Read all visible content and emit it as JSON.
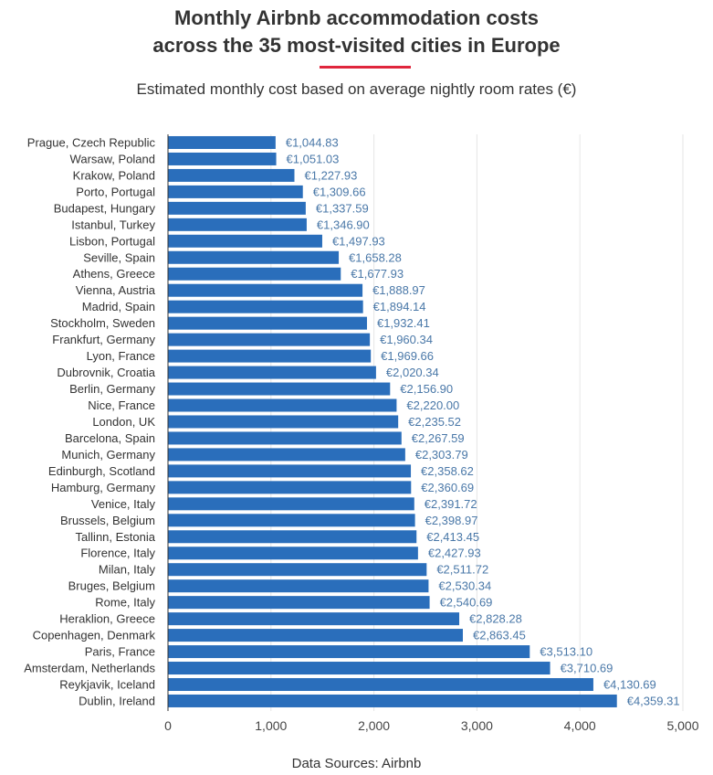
{
  "chart_data": {
    "type": "bar",
    "orientation": "horizontal",
    "title": "Monthly Airbnb accommodation costs across the 35 most-visited cities in Europe",
    "title_lines": [
      "Monthly Airbnb accommodation costs",
      "across the 35 most-visited cities in Europe"
    ],
    "subtitle": "Estimated monthly cost based on average nightly room rates (€)",
    "source": "Data Sources: Airbnb",
    "xlabel": "",
    "ylabel": "",
    "xlim": [
      0,
      5000
    ],
    "xticks": [
      0,
      1000,
      2000,
      3000,
      4000,
      5000
    ],
    "xtick_labels": [
      "0",
      "1,000",
      "2,000",
      "3,000",
      "4,000",
      "5,000"
    ],
    "grid": true,
    "bar_color": "#2a6ebb",
    "label_color": "#4a78a8",
    "accent_color": "#e0263c",
    "categories": [
      "Prague, Czech Republic",
      "Warsaw, Poland",
      "Krakow, Poland",
      "Porto, Portugal",
      "Budapest, Hungary",
      "Istanbul, Turkey",
      "Lisbon, Portugal",
      "Seville, Spain",
      "Athens, Greece",
      "Vienna, Austria",
      "Madrid, Spain",
      "Stockholm, Sweden",
      "Frankfurt, Germany",
      "Lyon, France",
      "Dubrovnik, Croatia",
      "Berlin, Germany",
      "Nice, France",
      "London, UK",
      "Barcelona, Spain",
      "Munich, Germany",
      "Edinburgh, Scotland",
      "Hamburg, Germany",
      "Venice, Italy",
      "Brussels, Belgium",
      "Tallinn, Estonia",
      "Florence, Italy",
      "Milan, Italy",
      "Bruges, Belgium",
      "Rome, Italy",
      "Heraklion, Greece",
      "Copenhagen, Denmark",
      "Paris, France",
      "Amsterdam, Netherlands",
      "Reykjavik, Iceland",
      "Dublin, Ireland"
    ],
    "values": [
      1044.83,
      1051.03,
      1227.93,
      1309.66,
      1337.59,
      1346.9,
      1497.93,
      1658.28,
      1677.93,
      1888.97,
      1894.14,
      1932.41,
      1960.34,
      1969.66,
      2020.34,
      2156.9,
      2220.0,
      2235.52,
      2267.59,
      2303.79,
      2358.62,
      2360.69,
      2391.72,
      2398.97,
      2413.45,
      2427.93,
      2511.72,
      2530.34,
      2540.69,
      2828.28,
      2863.45,
      3513.1,
      3710.69,
      4130.69,
      4359.31
    ],
    "data_labels": [
      "€1,044.83",
      "€1,051.03",
      "€1,227.93",
      "€1,309.66",
      "€1,337.59",
      "€1,346.90",
      "€1,497.93",
      "€1,658.28",
      "€1,677.93",
      "€1,888.97",
      "€1,894.14",
      "€1,932.41",
      "€1,960.34",
      "€1,969.66",
      "€2,020.34",
      "€2,156.90",
      "€2,220.00",
      "€2,235.52",
      "€2,267.59",
      "€2,303.79",
      "€2,358.62",
      "€2,360.69",
      "€2,391.72",
      "€2,398.97",
      "€2,413.45",
      "€2,427.93",
      "€2,511.72",
      "€2,530.34",
      "€2,540.69",
      "€2,828.28",
      "€2,863.45",
      "€3,513.10",
      "€3,710.69",
      "€4,130.69",
      "€4,359.31"
    ]
  }
}
